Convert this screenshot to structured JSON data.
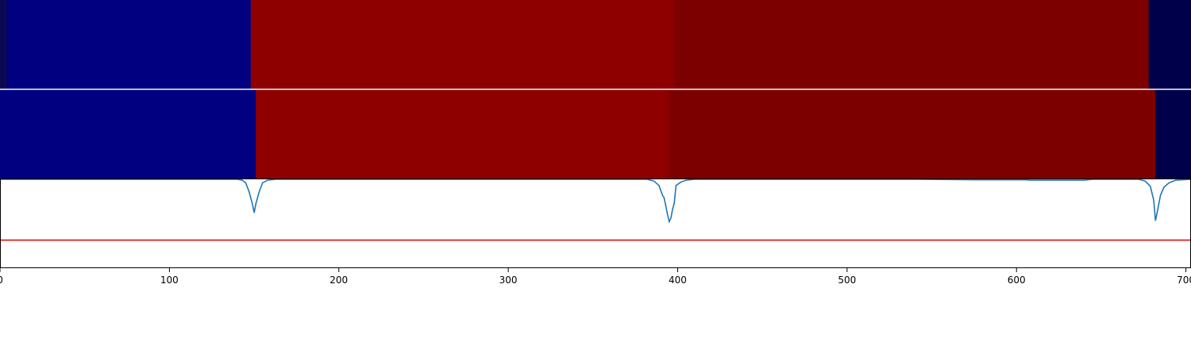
{
  "chart_data": {
    "type": "heatmap",
    "x_range": [
      0,
      703
    ],
    "x_ticks": [
      0,
      100,
      200,
      300,
      400,
      500,
      600,
      700
    ],
    "x_tick_labels": [
      "0",
      "100",
      "200",
      "300",
      "400",
      "500",
      "600",
      "700"
    ],
    "rows": [
      {
        "segments": [
          {
            "start": 0,
            "end": 4,
            "color": "#0a0a50"
          },
          {
            "start": 4,
            "end": 148,
            "color": "#000080"
          },
          {
            "start": 148,
            "end": 398,
            "color": "#8e0000"
          },
          {
            "start": 398,
            "end": 678,
            "color": "#7d0000"
          },
          {
            "start": 678,
            "end": 703,
            "color": "#00004a"
          }
        ]
      },
      {
        "segments": [
          {
            "start": 0,
            "end": 151,
            "color": "#000080"
          },
          {
            "start": 151,
            "end": 395,
            "color": "#8e0000"
          },
          {
            "start": 395,
            "end": 682,
            "color": "#7d0000"
          },
          {
            "start": 682,
            "end": 703,
            "color": "#00004a"
          }
        ]
      }
    ],
    "signal": {
      "color": "#1f77b4",
      "y_range": [
        0,
        1
      ],
      "points": [
        [
          0,
          1.0
        ],
        [
          140,
          1.0
        ],
        [
          143,
          0.99
        ],
        [
          145,
          0.96
        ],
        [
          147,
          0.86
        ],
        [
          149,
          0.72
        ],
        [
          150,
          0.62
        ],
        [
          151,
          0.72
        ],
        [
          153,
          0.86
        ],
        [
          155,
          0.96
        ],
        [
          158,
          0.99
        ],
        [
          163,
          1.0
        ],
        [
          382,
          1.0
        ],
        [
          386,
          0.98
        ],
        [
          389,
          0.93
        ],
        [
          391,
          0.82
        ],
        [
          392,
          0.79
        ],
        [
          393,
          0.7
        ],
        [
          394,
          0.6
        ],
        [
          395,
          0.52
        ],
        [
          396,
          0.56
        ],
        [
          397,
          0.66
        ],
        [
          398,
          0.73
        ],
        [
          399,
          0.93
        ],
        [
          402,
          0.97
        ],
        [
          405,
          0.99
        ],
        [
          410,
          1.0
        ],
        [
          540,
          1.0
        ],
        [
          575,
          0.995
        ],
        [
          605,
          0.995
        ],
        [
          608,
          0.99
        ],
        [
          640,
          0.99
        ],
        [
          645,
          1.0
        ],
        [
          672,
          1.0
        ],
        [
          676,
          0.98
        ],
        [
          679,
          0.92
        ],
        [
          681,
          0.76
        ],
        [
          682,
          0.53
        ],
        [
          683,
          0.62
        ],
        [
          685,
          0.82
        ],
        [
          687,
          0.91
        ],
        [
          690,
          0.96
        ],
        [
          694,
          0.99
        ],
        [
          703,
          1.0
        ]
      ]
    },
    "threshold": {
      "value": 0.31,
      "color": "#e00000"
    }
  }
}
